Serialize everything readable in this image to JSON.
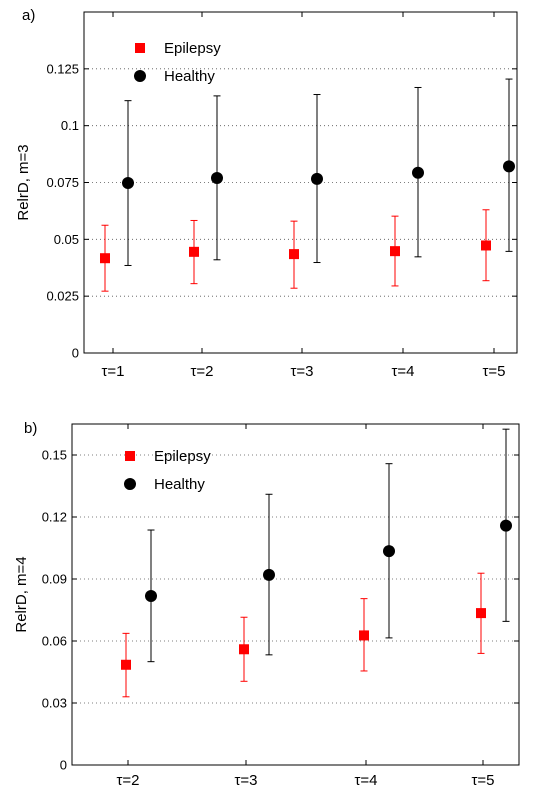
{
  "chart_data": [
    {
      "type": "scatter",
      "panel_label": "a)",
      "ylabel": "RelrD, m=3",
      "xlabel": "",
      "categories": [
        "τ=1",
        "τ=2",
        "τ=3",
        "τ=4",
        "τ=5"
      ],
      "ylim": [
        0,
        0.15
      ],
      "yticks": [
        "0",
        "0.025",
        "0.05",
        "0.075",
        "0.1",
        "0.125"
      ],
      "ytick_values": [
        0,
        0.025,
        0.05,
        0.075,
        0.1,
        0.125
      ],
      "grid": true,
      "legend_position": "top-left",
      "series": [
        {
          "name": "Epilepsy",
          "color": "#ff0000",
          "marker": "square",
          "values": [
            0.0417,
            0.0445,
            0.0435,
            0.0448,
            0.0473
          ],
          "lower": [
            0.0272,
            0.0305,
            0.0285,
            0.0295,
            0.0318
          ],
          "upper": [
            0.0562,
            0.0583,
            0.058,
            0.0602,
            0.063
          ]
        },
        {
          "name": "Healthy",
          "color": "#000000",
          "marker": "circle",
          "values": [
            0.0748,
            0.077,
            0.0766,
            0.0793,
            0.0821
          ],
          "lower": [
            0.0385,
            0.041,
            0.0398,
            0.0423,
            0.0447
          ],
          "upper": [
            0.111,
            0.1131,
            0.1137,
            0.1168,
            0.1205
          ]
        }
      ]
    },
    {
      "type": "scatter",
      "panel_label": "b)",
      "ylabel": "RelrD, m=4",
      "xlabel": "",
      "categories": [
        "τ=2",
        "τ=3",
        "τ=4",
        "τ=5"
      ],
      "ylim": [
        0,
        0.165
      ],
      "yticks": [
        "0",
        "0.03",
        "0.06",
        "0.09",
        "0.12",
        "0.15"
      ],
      "ytick_values": [
        0,
        0.03,
        0.06,
        0.09,
        0.12,
        0.15
      ],
      "grid": true,
      "legend_position": "top-left",
      "series": [
        {
          "name": "Epilepsy",
          "color": "#ff0000",
          "marker": "square",
          "values": [
            0.0485,
            0.056,
            0.0627,
            0.0735
          ],
          "lower": [
            0.033,
            0.0405,
            0.0455,
            0.054
          ],
          "upper": [
            0.0637,
            0.0715,
            0.0805,
            0.0928
          ]
        },
        {
          "name": "Healthy",
          "color": "#000000",
          "marker": "circle",
          "values": [
            0.0818,
            0.092,
            0.1035,
            0.1158
          ],
          "lower": [
            0.05,
            0.0533,
            0.0615,
            0.0695
          ],
          "upper": [
            0.1137,
            0.131,
            0.1458,
            0.1625
          ]
        }
      ]
    }
  ]
}
